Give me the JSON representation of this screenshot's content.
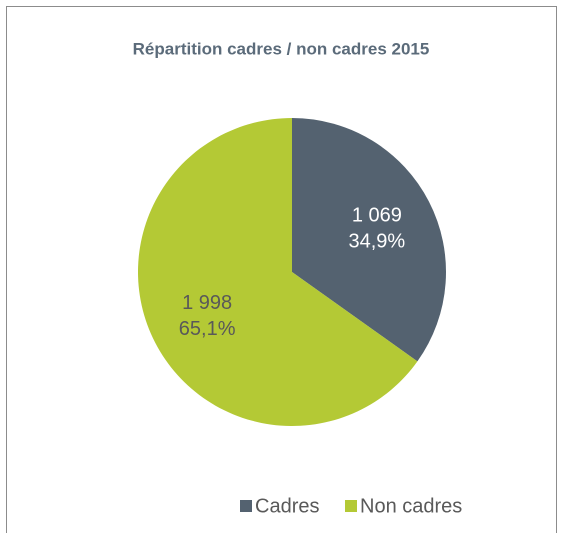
{
  "chart_data": {
    "type": "pie",
    "title": "Répartition cadres / non cadres 2015",
    "categories": [
      "Cadres",
      "Non cadres"
    ],
    "values": [
      1069,
      1998
    ],
    "value_labels": [
      "1 069",
      "1 998"
    ],
    "percents": [
      34.9,
      65.1
    ],
    "percent_labels": [
      "34,9%",
      "65,1%"
    ],
    "colors": [
      "#546270",
      "#b4c935"
    ],
    "label_colors": [
      "#ffffff",
      "#595959"
    ],
    "legend": "bottom"
  }
}
